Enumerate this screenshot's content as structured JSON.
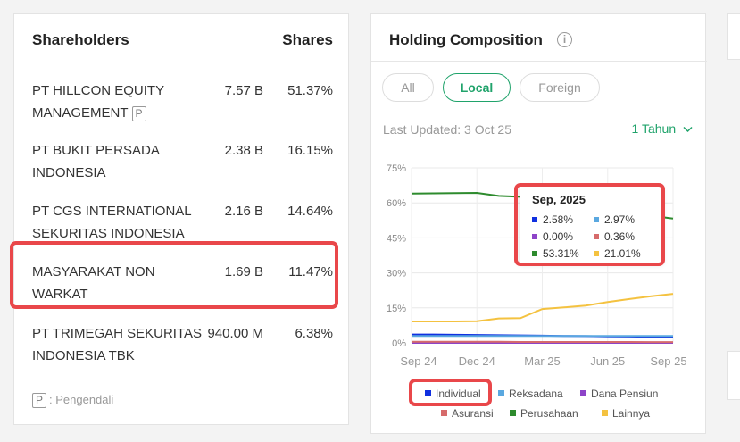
{
  "shareholders": {
    "title": "Shareholders",
    "shares_header": "Shares",
    "rows": [
      {
        "name": "PT HILLCON EQUITY MANAGEMENT",
        "badge": "P",
        "shares": "7.57 B",
        "percent": "51.37%"
      },
      {
        "name": "PT BUKIT PERSADA INDONESIA",
        "shares": "2.38 B",
        "percent": "16.15%"
      },
      {
        "name": "PT CGS INTERNATIONAL SEKURITAS INDONESIA",
        "shares": "2.16 B",
        "percent": "14.64%"
      },
      {
        "name": "MASYARAKAT NON WARKAT",
        "shares": "1.69 B",
        "percent": "11.47%"
      },
      {
        "name": "PT TRIMEGAH SEKURITAS INDONESIA TBK",
        "shares": "940.00 M",
        "percent": "6.38%"
      }
    ],
    "legend_badge": "P",
    "legend_text": ": Pengendali"
  },
  "holding": {
    "title": "Holding Composition",
    "info_icon": "info-icon",
    "tabs": [
      {
        "label": "All",
        "active": false
      },
      {
        "label": "Local",
        "active": true
      },
      {
        "label": "Foreign",
        "active": false
      }
    ],
    "last_updated": "Last Updated: 3 Oct 25",
    "period": "1 Tahun",
    "period_icon": "chevron-down-icon",
    "accent_color": "#20a36b",
    "tooltip": {
      "title": "Sep, 2025",
      "items": [
        {
          "color": "#1030e0",
          "value": "2.58%"
        },
        {
          "color": "#5aa8e0",
          "value": "2.97%"
        },
        {
          "color": "#8d44c8",
          "value": "0.00%"
        },
        {
          "color": "#d66b6b",
          "value": "0.36%"
        },
        {
          "color": "#2e8b2e",
          "value": "53.31%"
        },
        {
          "color": "#f4c240",
          "value": "21.01%"
        }
      ]
    },
    "legend": [
      {
        "name": "Individual",
        "color": "#1030e0"
      },
      {
        "name": "Reksadana",
        "color": "#5aa8e0"
      },
      {
        "name": "Dana Pensiun",
        "color": "#8d44c8"
      },
      {
        "name": "Asuransi",
        "color": "#d66b6b"
      },
      {
        "name": "Perusahaan",
        "color": "#2e8b2e"
      },
      {
        "name": "Lainnya",
        "color": "#f4c240"
      }
    ]
  },
  "highlight_color": "#e9474a",
  "chart_data": {
    "type": "line",
    "x_ticks": [
      "Sep 24",
      "Dec 24",
      "Mar 25",
      "Jun 25",
      "Sep 25"
    ],
    "y_ticks": [
      "75%",
      "60%",
      "45%",
      "30%",
      "15%",
      "0%"
    ],
    "ylim": [
      0,
      75
    ],
    "grid": true,
    "series": [
      {
        "name": "Individual",
        "color": "#1030e0",
        "values": [
          3.6,
          3.6,
          3.5,
          3.4,
          3.3,
          3.2,
          3.1,
          3.0,
          2.9,
          2.8,
          2.7,
          2.6,
          2.58
        ]
      },
      {
        "name": "Reksadana",
        "color": "#5aa8e0",
        "values": [
          3.0,
          3.0,
          3.0,
          3.0,
          3.0,
          3.0,
          3.0,
          3.0,
          3.0,
          3.0,
          3.0,
          3.0,
          2.97
        ]
      },
      {
        "name": "Dana Pensiun",
        "color": "#8d44c8",
        "values": [
          0,
          0,
          0,
          0,
          0,
          0,
          0,
          0,
          0,
          0,
          0,
          0,
          0
        ]
      },
      {
        "name": "Asuransi",
        "color": "#d66b6b",
        "values": [
          0.5,
          0.5,
          0.5,
          0.45,
          0.45,
          0.4,
          0.4,
          0.4,
          0.4,
          0.38,
          0.37,
          0.36,
          0.36
        ]
      },
      {
        "name": "Perusahaan",
        "color": "#2e8b2e",
        "values": [
          64.0,
          64.1,
          64.2,
          64.3,
          63.0,
          62.6,
          62.0,
          60.5,
          58.0,
          56.5,
          55.5,
          54.5,
          53.31
        ]
      },
      {
        "name": "Lainnya",
        "color": "#f4c240",
        "values": [
          9.2,
          9.2,
          9.2,
          9.3,
          10.5,
          10.6,
          14.5,
          15.2,
          16.0,
          17.5,
          18.8,
          20.0,
          21.01
        ]
      }
    ]
  }
}
